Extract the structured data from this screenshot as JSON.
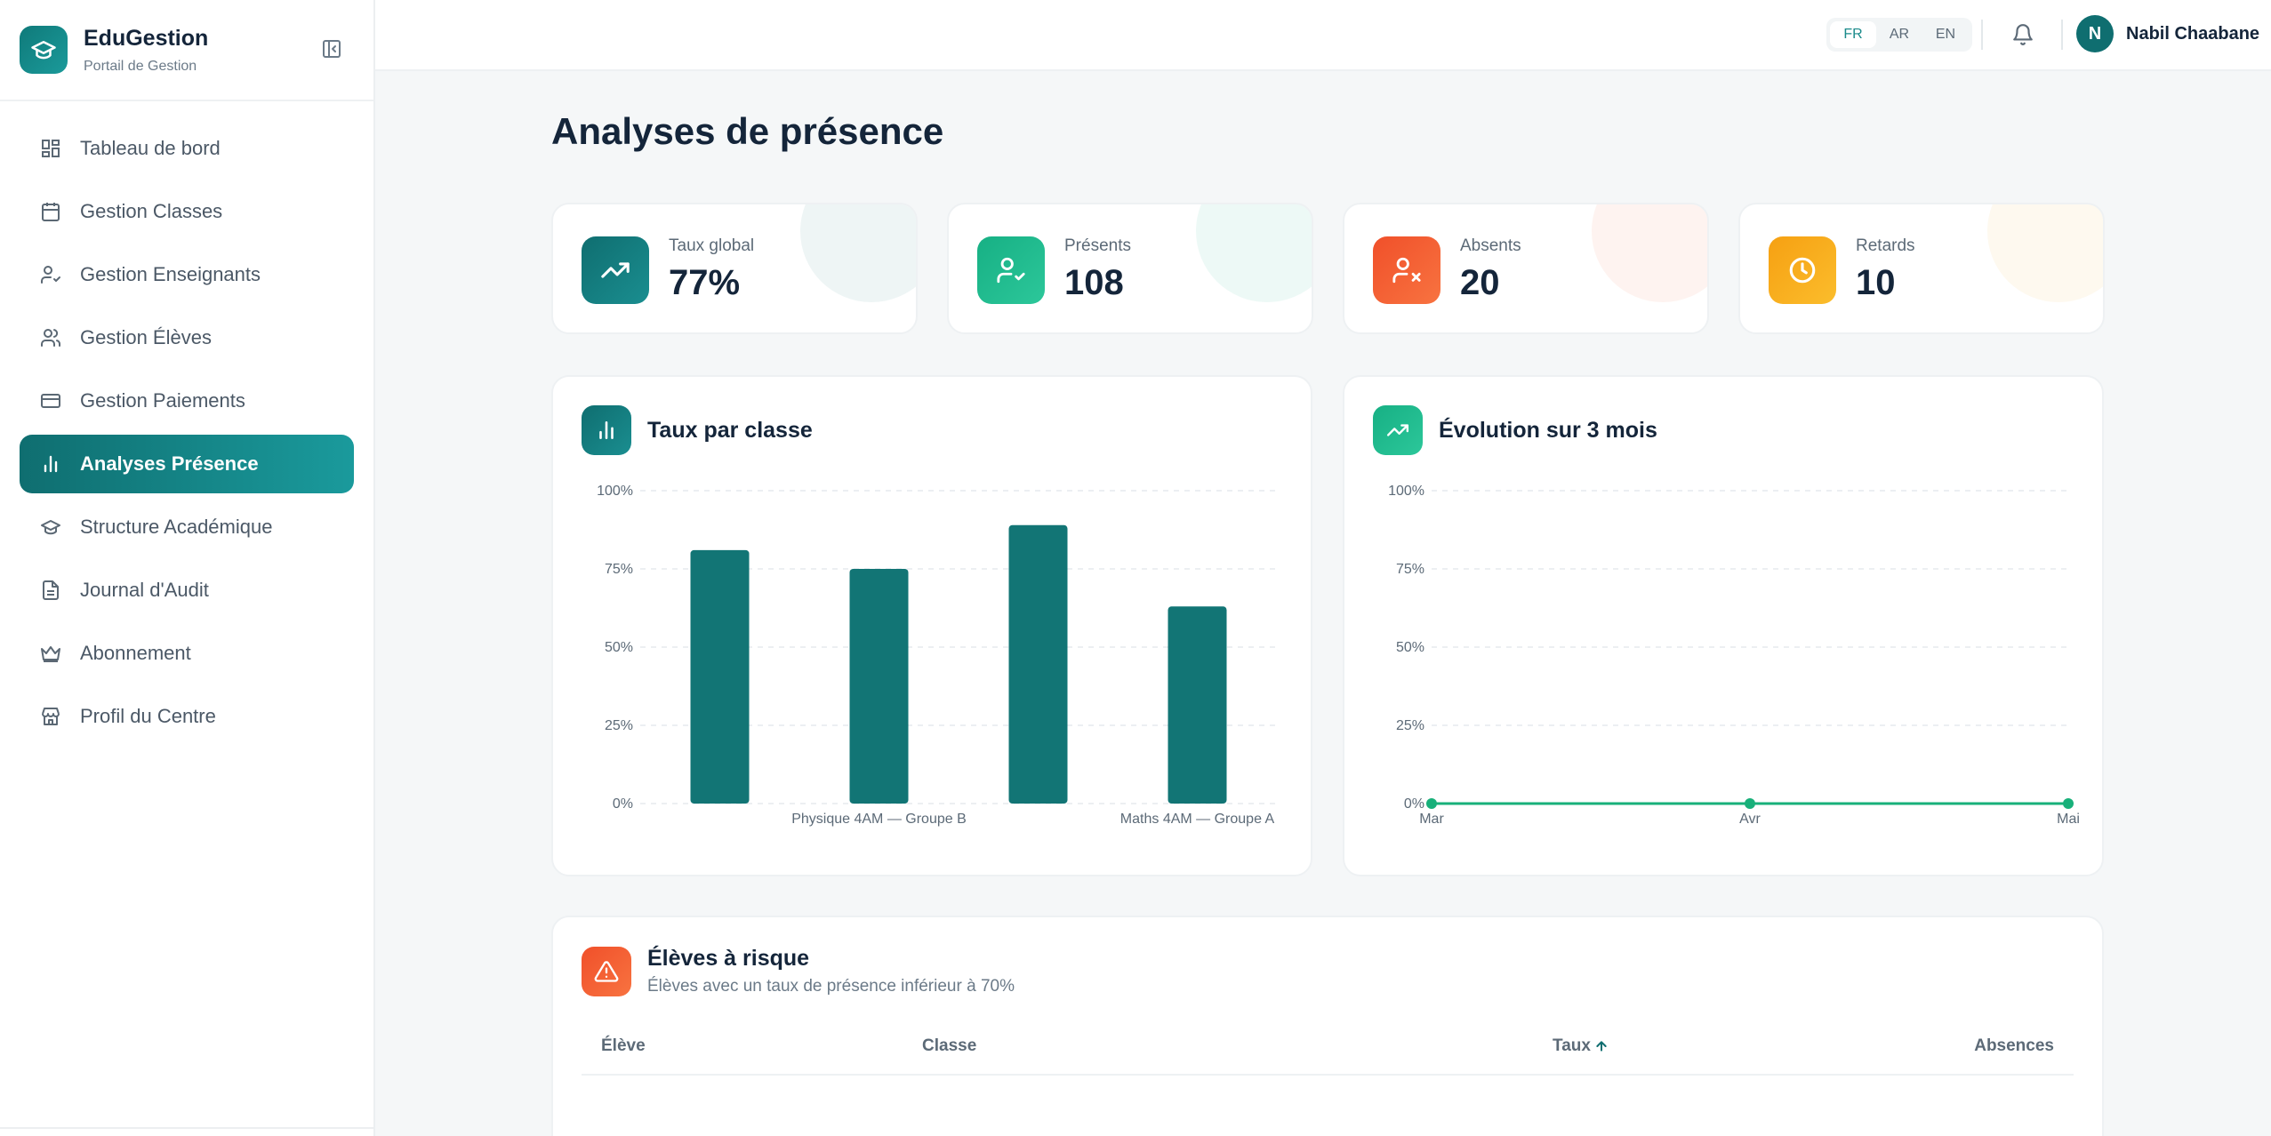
{
  "brand": {
    "name": "EduGestion",
    "subtitle": "Portail de Gestion"
  },
  "sidebar": {
    "items": [
      {
        "label": "Tableau de bord",
        "icon": "dashboard-icon"
      },
      {
        "label": "Gestion Classes",
        "icon": "calendar-icon"
      },
      {
        "label": "Gestion Enseignants",
        "icon": "user-check-icon"
      },
      {
        "label": "Gestion Élèves",
        "icon": "users-icon"
      },
      {
        "label": "Gestion Paiements",
        "icon": "credit-card-icon"
      },
      {
        "label": "Analyses Présence",
        "icon": "bar-chart-icon",
        "active": true
      },
      {
        "label": "Structure Académique",
        "icon": "graduation-cap-icon"
      },
      {
        "label": "Journal d'Audit",
        "icon": "file-text-icon"
      },
      {
        "label": "Abonnement",
        "icon": "crown-icon"
      },
      {
        "label": "Profil du Centre",
        "icon": "store-icon"
      }
    ]
  },
  "topbar": {
    "languages": [
      "FR",
      "AR",
      "EN"
    ],
    "active_language": "FR",
    "user": {
      "initial": "N",
      "name": "Nabil Chaabane"
    }
  },
  "page": {
    "title": "Analyses de présence"
  },
  "stats": [
    {
      "label": "Taux global",
      "value": "77%",
      "icon": "trending-up-icon",
      "color": "#0f6e70"
    },
    {
      "label": "Présents",
      "value": "108",
      "icon": "user-check-icon",
      "color": "#19b58a"
    },
    {
      "label": "Absents",
      "value": "20",
      "icon": "user-x-icon",
      "color": "#f0552e"
    },
    {
      "label": "Retards",
      "value": "10",
      "icon": "clock-icon",
      "color": "#f7a416"
    }
  ],
  "panels": {
    "by_class": {
      "title": "Taux par classe"
    },
    "evolution": {
      "title": "Évolution sur 3 mois"
    },
    "at_risk": {
      "title": "Élèves à risque",
      "subtitle": "Élèves avec un taux de présence inférieur à 70%",
      "columns": {
        "student": "Élève",
        "class": "Classe",
        "rate": "Taux",
        "absences": "Absences"
      }
    }
  },
  "chart_data": [
    {
      "type": "bar",
      "title": "Taux par classe",
      "categories": [
        "",
        "Physique 4AM — Groupe B",
        "",
        "Maths 4AM — Groupe A"
      ],
      "values": [
        81,
        75,
        89,
        63
      ],
      "yticks": [
        "0%",
        "25%",
        "50%",
        "75%",
        "100%"
      ],
      "ylim": [
        0,
        100
      ],
      "color": "#127575",
      "grid": true
    },
    {
      "type": "line",
      "title": "Évolution sur 3 mois",
      "x": [
        "Mar",
        "Avr",
        "Mai"
      ],
      "values": [
        0,
        0,
        0
      ],
      "yticks": [
        "0%",
        "25%",
        "50%",
        "75%",
        "100%"
      ],
      "ylim": [
        0,
        100
      ],
      "color": "#18b07a",
      "grid": true
    }
  ],
  "colors": {
    "accent": "#0f6e70",
    "accent_light": "#1a9a9c"
  }
}
